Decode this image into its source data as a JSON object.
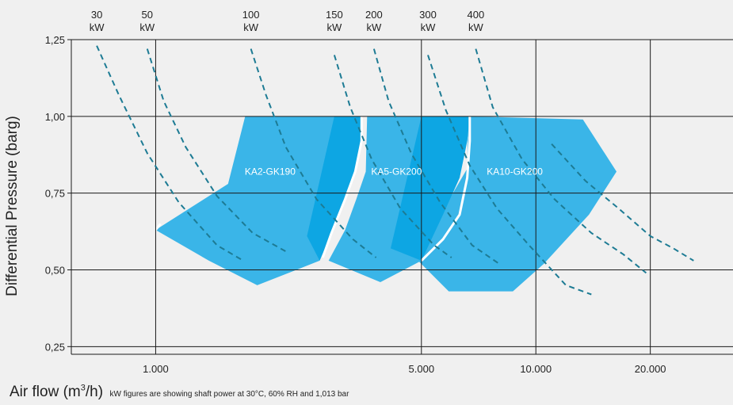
{
  "chart_data": {
    "type": "area",
    "ylabel": "Differential Pressure (barg)",
    "xlabel": "Air flow (m³/h)",
    "xlabel_base": "Air flow (m",
    "xlabel_sup": "3",
    "xlabel_tail": "/h)",
    "note": "kW figures are showing shaft power at 30°C, 60% RH and 1,013 bar",
    "x_scale": "log",
    "xlim": [
      600,
      33000
    ],
    "ylim": [
      0.225,
      1.25
    ],
    "x_ticks": [
      1000,
      5000,
      10000,
      20000
    ],
    "x_tick_labels": [
      "1.000",
      "5.000",
      "10.000",
      "20.000"
    ],
    "y_ticks": [
      0.25,
      0.5,
      0.75,
      1.0,
      1.25
    ],
    "y_tick_labels": [
      "0,25",
      "0,50",
      "0,75",
      "1,00",
      "1,25"
    ],
    "grid": true,
    "power_curves": [
      {
        "label_value": "30",
        "label_unit": "kW",
        "points": [
          [
            700,
            1.23
          ],
          [
            800,
            1.07
          ],
          [
            950,
            0.88
          ],
          [
            1150,
            0.72
          ],
          [
            1450,
            0.58
          ],
          [
            1700,
            0.53
          ]
        ]
      },
      {
        "label_value": "50",
        "label_unit": "kW",
        "points": [
          [
            950,
            1.22
          ],
          [
            1050,
            1.05
          ],
          [
            1200,
            0.9
          ],
          [
            1450,
            0.74
          ],
          [
            1800,
            0.62
          ],
          [
            2200,
            0.56
          ]
        ]
      },
      {
        "label_value": "100",
        "label_unit": "kW",
        "points": [
          [
            1780,
            1.22
          ],
          [
            1950,
            1.07
          ],
          [
            2200,
            0.9
          ],
          [
            2650,
            0.73
          ],
          [
            3300,
            0.6
          ],
          [
            3800,
            0.54
          ]
        ]
      },
      {
        "label_value": "150",
        "label_unit": "kW",
        "points": [
          [
            2950,
            1.2
          ],
          [
            3250,
            1.03
          ],
          [
            3700,
            0.86
          ],
          [
            4400,
            0.7
          ],
          [
            5400,
            0.58
          ],
          [
            6000,
            0.54
          ]
        ]
      },
      {
        "label_value": "200",
        "label_unit": "kW",
        "points": [
          [
            3750,
            1.22
          ],
          [
            4100,
            1.05
          ],
          [
            4700,
            0.88
          ],
          [
            5600,
            0.72
          ],
          [
            6800,
            0.58
          ],
          [
            8000,
            0.52
          ]
        ]
      },
      {
        "label_value": "300",
        "label_unit": "kW",
        "points": [
          [
            5200,
            1.2
          ],
          [
            5800,
            1.02
          ],
          [
            6700,
            0.84
          ],
          [
            7900,
            0.7
          ],
          [
            9600,
            0.58
          ],
          [
            12000,
            0.45
          ],
          [
            14000,
            0.42
          ]
        ]
      },
      {
        "label_value": "400",
        "label_unit": "kW",
        "points": [
          [
            6950,
            1.22
          ],
          [
            7700,
            1.03
          ],
          [
            9200,
            0.86
          ],
          [
            11200,
            0.73
          ],
          [
            14000,
            0.62
          ],
          [
            17000,
            0.55
          ],
          [
            19500,
            0.49
          ]
        ]
      },
      {
        "label_value": "",
        "label_unit": "",
        "points": [
          [
            11000,
            0.91
          ],
          [
            13500,
            0.79
          ],
          [
            16500,
            0.7
          ],
          [
            20000,
            0.61
          ],
          [
            23000,
            0.57
          ],
          [
            26000,
            0.53
          ]
        ]
      }
    ],
    "regions": [
      {
        "name": "KA2-GK190",
        "color": "#3ab5e8",
        "label_at": [
          2000,
          0.82
        ],
        "points": [
          [
            1000,
            0.63
          ],
          [
            1550,
            0.78
          ],
          [
            1720,
            1.0
          ],
          [
            3480,
            1.0
          ],
          [
            3480,
            0.92
          ],
          [
            3350,
            0.82
          ],
          [
            3150,
            0.73
          ],
          [
            2900,
            0.62
          ],
          [
            2700,
            0.53
          ],
          [
            1850,
            0.45
          ],
          [
            1380,
            0.53
          ]
        ]
      },
      {
        "name": "KA5-GK200",
        "color": "#3ab5e8",
        "label_at": [
          4300,
          0.82
        ],
        "points": [
          [
            2850,
            0.53
          ],
          [
            3150,
            0.63
          ],
          [
            3370,
            0.73
          ],
          [
            3570,
            0.82
          ],
          [
            3600,
            1.0
          ],
          [
            6700,
            1.0
          ],
          [
            6600,
            0.92
          ],
          [
            6300,
            0.8
          ],
          [
            5700,
            0.68
          ],
          [
            5000,
            0.53
          ],
          [
            3900,
            0.46
          ]
        ]
      },
      {
        "name": "KA10-GK200",
        "color": "#3ab5e8",
        "label_at": [
          8800,
          0.82
        ],
        "points": [
          [
            4900,
            0.53
          ],
          [
            5500,
            0.66
          ],
          [
            6050,
            0.75
          ],
          [
            6600,
            0.83
          ],
          [
            6650,
            1.0
          ],
          [
            13300,
            0.99
          ],
          [
            16300,
            0.82
          ],
          [
            13800,
            0.68
          ],
          [
            10500,
            0.52
          ],
          [
            8700,
            0.43
          ],
          [
            5900,
            0.43
          ]
        ]
      }
    ],
    "overlap_regions": [
      {
        "color": "#0da6e3",
        "points": [
          [
            2500,
            0.61
          ],
          [
            2950,
            1.0
          ],
          [
            3480,
            1.0
          ],
          [
            3480,
            0.92
          ],
          [
            3350,
            0.82
          ],
          [
            3150,
            0.73
          ],
          [
            2900,
            0.62
          ],
          [
            2700,
            0.53
          ]
        ]
      },
      {
        "color": "#0da6e3",
        "points": [
          [
            4150,
            0.57
          ],
          [
            5000,
            1.0
          ],
          [
            6700,
            1.0
          ],
          [
            6600,
            0.92
          ],
          [
            6300,
            0.8
          ],
          [
            5700,
            0.68
          ],
          [
            5000,
            0.53
          ]
        ]
      }
    ],
    "boundaries": [
      {
        "points": [
          [
            1000,
            0.63
          ],
          [
            1030,
            0.65
          ]
        ]
      },
      {
        "points": [
          [
            3480,
            1.0
          ],
          [
            3480,
            0.92
          ],
          [
            3350,
            0.82
          ],
          [
            3150,
            0.73
          ],
          [
            2900,
            0.62
          ],
          [
            2750,
            0.54
          ]
        ]
      },
      {
        "points": [
          [
            6700,
            1.0
          ],
          [
            6700,
            0.92
          ],
          [
            6600,
            0.8
          ],
          [
            6300,
            0.68
          ],
          [
            5700,
            0.6
          ],
          [
            5000,
            0.53
          ]
        ]
      }
    ],
    "colors": {
      "background": "#f0f0f0",
      "region": "#3ab5e8",
      "overlap": "#0da6e3",
      "curve": "#1d7b94",
      "grid": "#1a1a1a",
      "boundary": "#ffffff"
    }
  }
}
